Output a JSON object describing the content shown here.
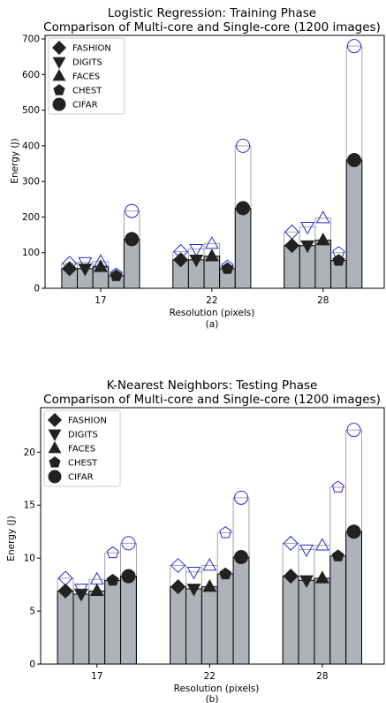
{
  "chart_data": [
    {
      "type": "bar",
      "title": "Logistic Regression: Training Phase",
      "subtitle": "Comparison of Multi-core and Single-core (1200 images)",
      "xlabel": "Resolution (pixels)",
      "ylabel": "Energy (J)",
      "caption": "(a)",
      "categories": [
        "17",
        "22",
        "28"
      ],
      "ylim": [
        0,
        710
      ],
      "yticks": [
        0,
        100,
        200,
        300,
        400,
        500,
        600,
        700
      ],
      "legend_position": "top-left",
      "legend": [
        "FASHION",
        "DIGITS",
        "FACES",
        "CHEST",
        "CIFAR"
      ],
      "markers": [
        "diamond",
        "triangle-down",
        "triangle-up",
        "pentagon",
        "circle"
      ],
      "series": [
        {
          "name": "FASHION",
          "multi_core": [
            55,
            80,
            120
          ],
          "single_core": [
            70,
            103,
            158
          ]
        },
        {
          "name": "DIGITS",
          "multi_core": [
            55,
            80,
            120
          ],
          "single_core": [
            73,
            110,
            172
          ]
        },
        {
          "name": "FACES",
          "multi_core": [
            60,
            90,
            135
          ],
          "single_core": [
            75,
            125,
            197
          ]
        },
        {
          "name": "CHEST",
          "multi_core": [
            35,
            55,
            78
          ],
          "single_core": [
            40,
            62,
            100
          ]
        },
        {
          "name": "CIFAR",
          "multi_core": [
            138,
            225,
            360
          ],
          "single_core": [
            217,
            400,
            680
          ]
        }
      ]
    },
    {
      "type": "bar",
      "title": "K-Nearest Neighbors: Testing Phase",
      "subtitle": "Comparison of Multi-core and Single-core (1200 images)",
      "xlabel": "Resolution (pixels)",
      "ylabel": "Energy (J)",
      "caption": "(b)",
      "categories": [
        "17",
        "22",
        "28"
      ],
      "ylim": [
        0,
        24.2
      ],
      "yticks": [
        0,
        5,
        10,
        15,
        20
      ],
      "legend_position": "top-left",
      "legend": [
        "FASHION",
        "DIGITS",
        "FACES",
        "CHEST",
        "CIFAR"
      ],
      "markers": [
        "diamond",
        "triangle-down",
        "triangle-up",
        "pentagon",
        "circle"
      ],
      "series": [
        {
          "name": "FASHION",
          "multi_core": [
            6.9,
            7.3,
            8.3
          ],
          "single_core": [
            8.1,
            9.3,
            11.4
          ]
        },
        {
          "name": "DIGITS",
          "multi_core": [
            6.6,
            7.1,
            7.9
          ],
          "single_core": [
            7.1,
            8.7,
            10.8
          ]
        },
        {
          "name": "FACES",
          "multi_core": [
            6.9,
            7.3,
            8.1
          ],
          "single_core": [
            8.0,
            9.3,
            11.2
          ]
        },
        {
          "name": "CHEST",
          "multi_core": [
            7.9,
            8.5,
            10.2
          ],
          "single_core": [
            10.5,
            12.4,
            16.7
          ]
        },
        {
          "name": "CIFAR",
          "multi_core": [
            8.3,
            10.1,
            12.5
          ],
          "single_core": [
            11.4,
            15.7,
            22.1
          ]
        }
      ]
    }
  ]
}
